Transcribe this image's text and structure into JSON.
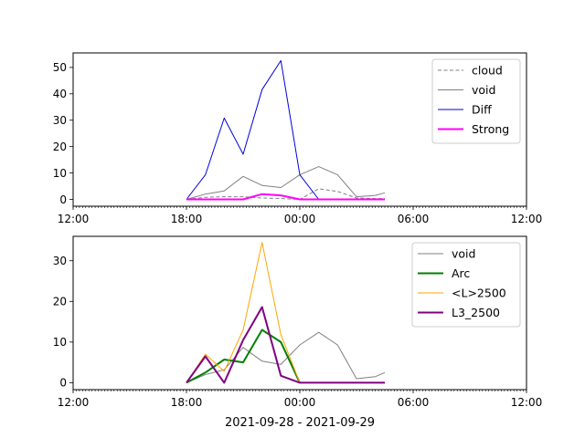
{
  "xlabel": "2021-09-28 - 2021-09-29",
  "x_axis": {
    "range_hours": [
      12,
      36
    ],
    "ticks": [
      {
        "h": 12,
        "label": "12:00"
      },
      {
        "h": 18,
        "label": "18:00"
      },
      {
        "h": 24,
        "label": "00:00"
      },
      {
        "h": 30,
        "label": "06:00"
      },
      {
        "h": 36,
        "label": "12:00"
      }
    ]
  },
  "chart_data": [
    {
      "type": "line",
      "id": "top",
      "ylim": [
        -2.6,
        55.5
      ],
      "yticks": [
        0,
        10,
        20,
        30,
        40,
        50
      ],
      "legend": "upper-right",
      "grid": false,
      "series": [
        {
          "name": "cloud",
          "color": "#808080",
          "width": 1,
          "dash": "4,2.5",
          "x": [
            18,
            19,
            20,
            21,
            22,
            23,
            24,
            25,
            26,
            27,
            28,
            28.5
          ],
          "y": [
            0,
            0.8,
            1,
            1,
            0.5,
            0.3,
            0,
            4,
            3,
            0.5,
            0.3,
            0.3
          ]
        },
        {
          "name": "void",
          "color": "#808080",
          "width": 1,
          "x": [
            18,
            19,
            20,
            21,
            22,
            23,
            24,
            25,
            26,
            27,
            28,
            28.5
          ],
          "y": [
            0,
            2,
            3.2,
            8.7,
            5.3,
            4.5,
            9.3,
            12.4,
            9.3,
            1,
            1.5,
            2.5
          ]
        },
        {
          "name": "Diff",
          "color": "#0000dd",
          "width": 1,
          "x": [
            18,
            19,
            20,
            21,
            22,
            23,
            24,
            25
          ],
          "y": [
            0,
            9.3,
            30.8,
            17.1,
            41.6,
            52.6,
            9.3,
            0
          ]
        },
        {
          "name": "Strong",
          "color": "#ff00ff",
          "width": 2,
          "x": [
            18,
            19,
            20,
            21,
            22,
            23,
            24,
            25,
            26,
            27,
            28,
            28.5
          ],
          "y": [
            0,
            0,
            0,
            0,
            2,
            1.5,
            0,
            0,
            0,
            0,
            0,
            0
          ]
        }
      ]
    },
    {
      "type": "line",
      "id": "bottom",
      "ylim": [
        -1.7,
        36.0
      ],
      "yticks": [
        0,
        10,
        20,
        30
      ],
      "legend": "upper-right",
      "grid": false,
      "series": [
        {
          "name": "void",
          "color": "#808080",
          "width": 1,
          "x": [
            18,
            19,
            20,
            21,
            22,
            23,
            24,
            25,
            26,
            27,
            28,
            28.5
          ],
          "y": [
            0,
            2,
            3.2,
            8.7,
            5.3,
            4.5,
            9.3,
            12.4,
            9.3,
            1,
            1.5,
            2.5
          ]
        },
        {
          "name": "Arc",
          "color": "#008000",
          "width": 2,
          "x": [
            18,
            19,
            20,
            21,
            22,
            23,
            24
          ],
          "y": [
            0,
            2.5,
            5.7,
            5,
            13,
            10,
            0
          ]
        },
        {
          "name": "<L>2500",
          "color": "#ffa500",
          "width": 1,
          "x": [
            18,
            19,
            20,
            21,
            22,
            23,
            24
          ],
          "y": [
            0,
            7,
            2.8,
            13,
            34.5,
            11.8,
            0
          ]
        },
        {
          "name": "L3_2500",
          "color": "#800080",
          "width": 2,
          "x": [
            18,
            19,
            20,
            21,
            22,
            23,
            24,
            25,
            26,
            27,
            28,
            28.5
          ],
          "y": [
            0,
            6.5,
            0,
            10.5,
            18.6,
            1.7,
            0,
            0,
            0,
            0,
            0,
            0
          ]
        }
      ]
    }
  ]
}
